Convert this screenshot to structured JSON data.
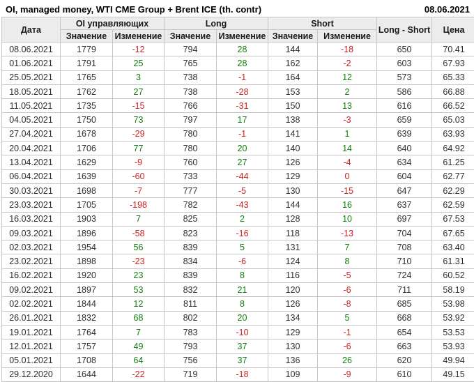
{
  "page": {
    "title": "OI, managed money, WTI CME Group + Brent ICE (th. contr)",
    "report_date": "08.06.2021"
  },
  "colors": {
    "positive_change": "#0e7d0e",
    "negative_change": "#cc2020",
    "header_background": "#ececec",
    "border": "#c6c6c6",
    "text": "#2e2e2e"
  },
  "table": {
    "headers": {
      "date": "Дата",
      "group_oi": "OI управляющих",
      "group_long": "Long",
      "group_short": "Short",
      "value": "Значение",
      "change": "Изменение",
      "long_short": "Long - Short",
      "price": "Цена"
    }
  },
  "chart_data": {
    "type": "table",
    "title": "OI, managed money, WTI CME Group + Brent ICE (th. contr)",
    "report_date": "08.06.2021",
    "columns": [
      "Дата",
      "OI управляющих Значение",
      "OI управляющих Изменение",
      "Long Значение",
      "Long Изменение",
      "Short Значение",
      "Short Изменение",
      "Long - Short",
      "Цена"
    ],
    "rows": [
      [
        "08.06.2021",
        1779,
        -12,
        794,
        28,
        144,
        -18,
        650,
        "70.41"
      ],
      [
        "01.06.2021",
        1791,
        25,
        765,
        28,
        162,
        -2,
        603,
        "67.93"
      ],
      [
        "25.05.2021",
        1765,
        3,
        738,
        -1,
        164,
        12,
        573,
        "65.33"
      ],
      [
        "18.05.2021",
        1762,
        27,
        738,
        -28,
        153,
        2,
        586,
        "66.88"
      ],
      [
        "11.05.2021",
        1735,
        -15,
        766,
        -31,
        150,
        13,
        616,
        "66.52"
      ],
      [
        "04.05.2021",
        1750,
        73,
        797,
        17,
        138,
        -3,
        659,
        "65.03"
      ],
      [
        "27.04.2021",
        1678,
        -29,
        780,
        -1,
        141,
        1,
        639,
        "63.93"
      ],
      [
        "20.04.2021",
        1706,
        77,
        780,
        20,
        140,
        14,
        640,
        "64.92"
      ],
      [
        "13.04.2021",
        1629,
        -9,
        760,
        27,
        126,
        -4,
        634,
        "61.25"
      ],
      [
        "06.04.2021",
        1639,
        -60,
        733,
        -44,
        129,
        0,
        604,
        "62.77"
      ],
      [
        "30.03.2021",
        1698,
        -7,
        777,
        -5,
        130,
        -15,
        647,
        "62.29"
      ],
      [
        "23.03.2021",
        1705,
        -198,
        782,
        -43,
        144,
        16,
        637,
        "62.59"
      ],
      [
        "16.03.2021",
        1903,
        7,
        825,
        2,
        128,
        10,
        697,
        "67.53"
      ],
      [
        "09.03.2021",
        1896,
        -58,
        823,
        -16,
        118,
        -13,
        704,
        "67.65"
      ],
      [
        "02.03.2021",
        1954,
        56,
        839,
        5,
        131,
        7,
        708,
        "63.40"
      ],
      [
        "23.02.2021",
        1898,
        -23,
        834,
        -6,
        124,
        8,
        710,
        "61.31"
      ],
      [
        "16.02.2021",
        1920,
        23,
        839,
        8,
        116,
        -5,
        724,
        "60.52"
      ],
      [
        "09.02.2021",
        1897,
        53,
        832,
        21,
        120,
        -6,
        711,
        "58.19"
      ],
      [
        "02.02.2021",
        1844,
        12,
        811,
        8,
        126,
        -8,
        685,
        "53.98"
      ],
      [
        "26.01.2021",
        1832,
        68,
        802,
        20,
        134,
        5,
        668,
        "53.92"
      ],
      [
        "19.01.2021",
        1764,
        7,
        783,
        -10,
        129,
        -1,
        654,
        "53.53"
      ],
      [
        "12.01.2021",
        1757,
        49,
        793,
        37,
        130,
        -6,
        663,
        "53.93"
      ],
      [
        "05.01.2021",
        1708,
        64,
        756,
        37,
        136,
        26,
        620,
        "49.94"
      ],
      [
        "29.12.2020",
        1644,
        -22,
        719,
        -18,
        109,
        -9,
        610,
        "49.15"
      ]
    ]
  }
}
